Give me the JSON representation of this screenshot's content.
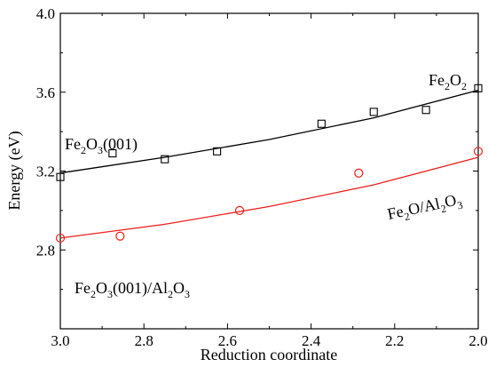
{
  "chart_data": {
    "type": "scatter",
    "xlabel": "Reduction coordinate",
    "ylabel": "Energy (eV)",
    "xlim": [
      3.0,
      2.0
    ],
    "ylim": [
      2.4,
      4.0
    ],
    "x_ticks": [
      3.0,
      2.8,
      2.6,
      2.4,
      2.2,
      2.0
    ],
    "x_tick_labels": [
      "3.0",
      "2.8",
      "2.6",
      "2.4",
      "2.2",
      "2.0"
    ],
    "y_ticks": [
      2.8,
      3.2,
      3.6,
      4.0
    ],
    "y_tick_labels": [
      "2.8",
      "3.2",
      "3.6",
      "4.0"
    ],
    "grid": false,
    "series": [
      {
        "color": "#000000",
        "marker": "square",
        "x": [
          3.0,
          2.875,
          2.75,
          2.625,
          2.375,
          2.25,
          2.125,
          2.0
        ],
        "y": [
          3.17,
          3.29,
          3.26,
          3.3,
          3.44,
          3.5,
          3.51,
          3.62
        ],
        "fit": {
          "x": [
            3.0,
            2.75,
            2.5,
            2.25,
            2.0
          ],
          "y": [
            3.19,
            3.27,
            3.36,
            3.47,
            3.61
          ]
        }
      },
      {
        "color": "#e8201c",
        "marker": "circle",
        "x": [
          3.0,
          2.857,
          2.571,
          2.286,
          2.0
        ],
        "y": [
          2.86,
          2.87,
          3.0,
          3.19,
          3.3
        ],
        "fit": {
          "x": [
            3.0,
            2.75,
            2.5,
            2.25,
            2.0
          ],
          "y": [
            2.86,
            2.93,
            3.02,
            3.13,
            3.27
          ]
        }
      }
    ],
    "annotations": [
      {
        "id": "fe2o3-001",
        "parts": [
          [
            "Fe",
            ""
          ],
          [
            "2",
            "sub"
          ],
          [
            "O",
            ""
          ],
          [
            "3",
            "sub"
          ],
          [
            "(001)",
            ""
          ]
        ]
      },
      {
        "id": "fe2o2",
        "parts": [
          [
            "Fe",
            ""
          ],
          [
            "2",
            "sub"
          ],
          [
            "O",
            ""
          ],
          [
            "2",
            "sub"
          ]
        ]
      },
      {
        "id": "fe2o-al2o3",
        "parts": [
          [
            "Fe",
            ""
          ],
          [
            "2",
            "sub"
          ],
          [
            "O/Al",
            ""
          ],
          [
            "2",
            "sub"
          ],
          [
            "O",
            ""
          ],
          [
            "3",
            "sub"
          ]
        ]
      },
      {
        "id": "fe2o3-001-al2o3",
        "parts": [
          [
            "Fe",
            ""
          ],
          [
            "2",
            "sub"
          ],
          [
            "O",
            ""
          ],
          [
            "3",
            "sub"
          ],
          [
            "(001)/Al",
            ""
          ],
          [
            "2",
            "sub"
          ],
          [
            "O",
            ""
          ],
          [
            "3",
            "sub"
          ]
        ]
      }
    ]
  }
}
